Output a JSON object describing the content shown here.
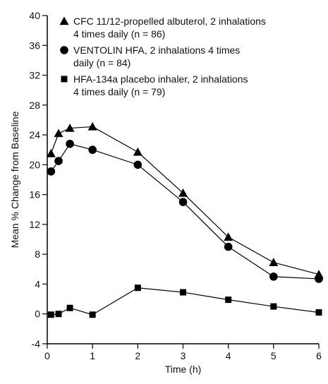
{
  "chart_data": {
    "type": "line",
    "xlabel": "Time (h)",
    "ylabel": "Mean % Change  from Baseline",
    "xlim": [
      0,
      6
    ],
    "ylim": [
      -4,
      40
    ],
    "xticks": [
      "0",
      "1",
      "2",
      "3",
      "4",
      "5",
      "6"
    ],
    "yticks": [
      "-4",
      "0",
      "4",
      "8",
      "12",
      "16",
      "20",
      "24",
      "28",
      "32",
      "36",
      "40"
    ],
    "grid": false,
    "legend_placement": "top-right",
    "series": [
      {
        "name": "CFC 11/12-propelled albuterol, 2 inhalations 4 times daily (n = 86)",
        "legend_lines": [
          "CFC 11/12-propelled albuterol, 2 inhalations",
          "4 times daily (n = 86)"
        ],
        "marker": "triangle",
        "x": [
          0.083,
          0.25,
          0.5,
          1,
          2,
          3,
          4,
          5,
          6
        ],
        "y": [
          21.5,
          24.2,
          24.9,
          25.1,
          21.7,
          16.2,
          10.3,
          6.9,
          5.3
        ]
      },
      {
        "name": "VENTOLIN HFA, 2 inhalations 4 times daily (n = 84)",
        "legend_lines": [
          "VENTOLIN HFA, 2 inhalations 4 times",
          "daily (n = 84)"
        ],
        "marker": "circle",
        "x": [
          0.083,
          0.25,
          0.5,
          1,
          2,
          3,
          4,
          5,
          6
        ],
        "y": [
          19.1,
          20.5,
          22.8,
          22.0,
          20.0,
          15.0,
          9.0,
          5.0,
          4.7
        ]
      },
      {
        "name": "HFA-134a placebo inhaler, 2 inhalations 4 times daily (n = 79)",
        "legend_lines": [
          "HFA-134a placebo inhaler, 2 inhalations",
          "4 times daily (n = 79)"
        ],
        "marker": "square",
        "x": [
          0.083,
          0.25,
          0.5,
          1,
          2,
          3,
          4,
          5,
          6
        ],
        "y": [
          -0.1,
          0.0,
          0.8,
          -0.1,
          3.5,
          2.9,
          1.9,
          1.0,
          0.2
        ]
      }
    ]
  }
}
